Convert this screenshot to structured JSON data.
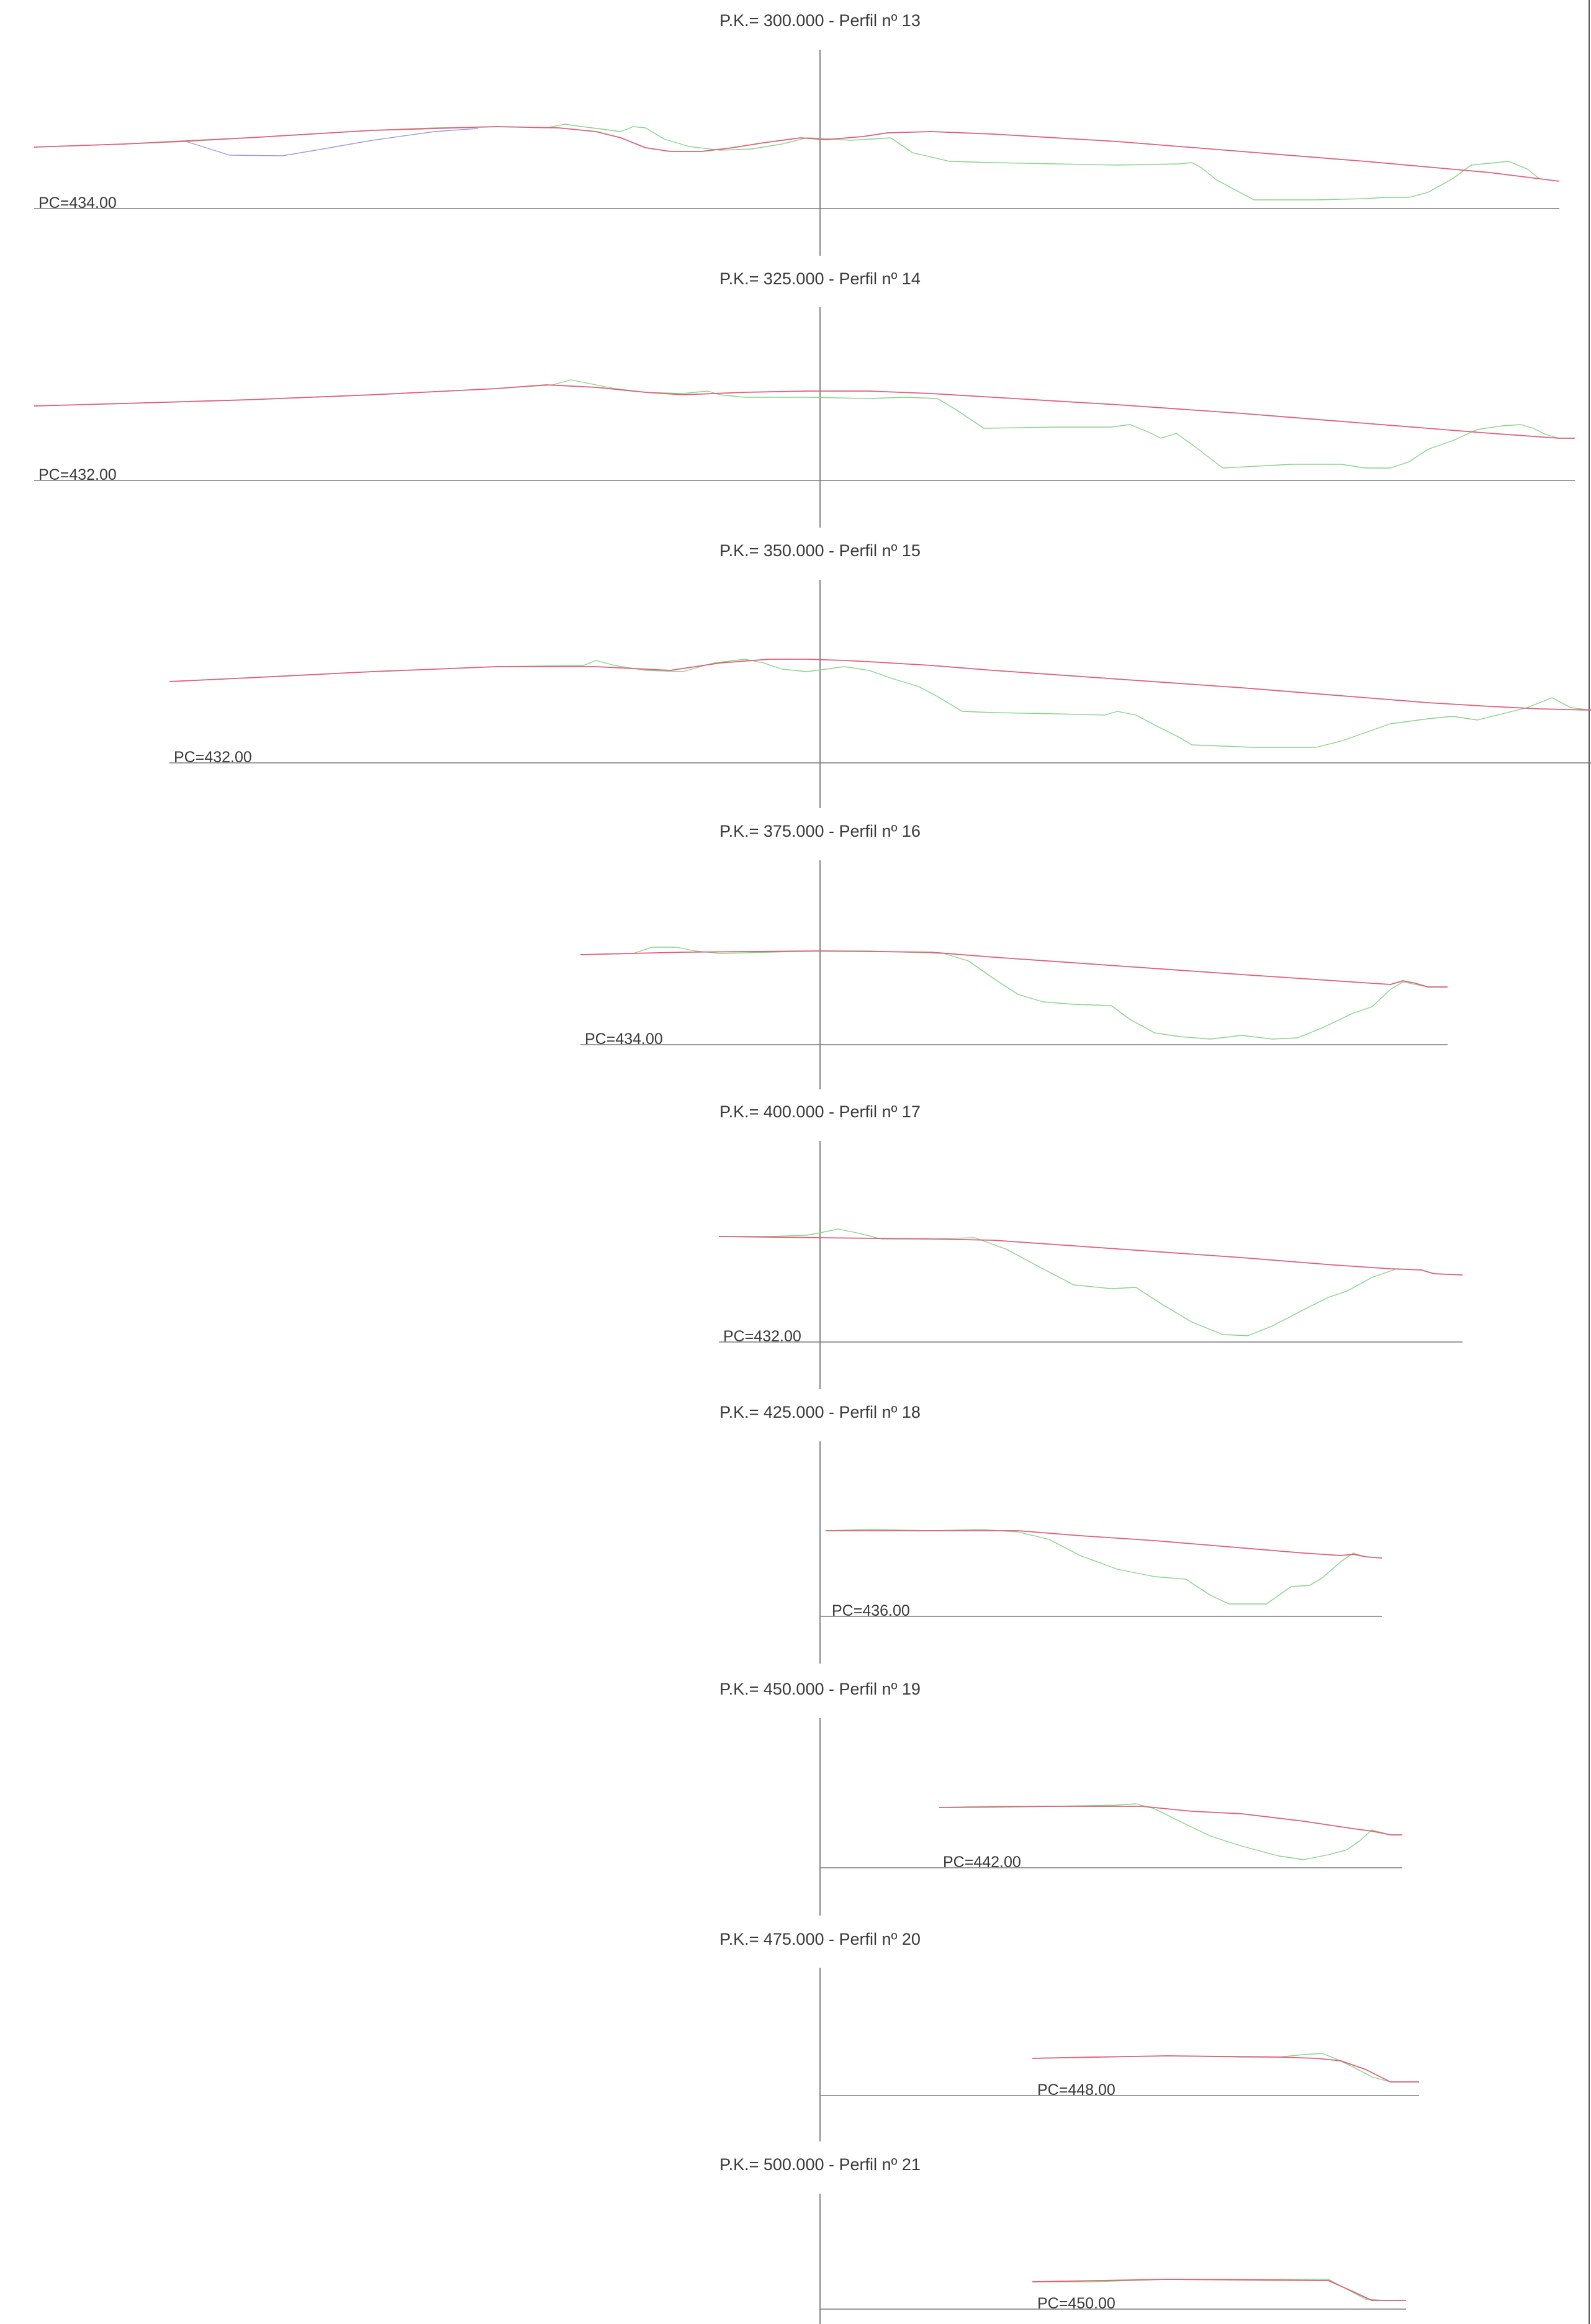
{
  "colors": {
    "terrain": "#86d486",
    "projected": "#e0607a",
    "alternative": "#9b9bdf",
    "axis": "#6b6b6b"
  },
  "sheet": {
    "profiles": [
      {
        "id": "p13",
        "title": "P.K.=  300.000 - Perfil nº 13",
        "pc_label": "PC=434.00"
      },
      {
        "id": "p14",
        "title": "P.K.=  325.000 - Perfil nº 14",
        "pc_label": "PC=432.00"
      },
      {
        "id": "p15",
        "title": "P.K.=  350.000 - Perfil nº 15",
        "pc_label": "PC=432.00"
      },
      {
        "id": "p16",
        "title": "P.K.=  375.000 - Perfil nº 16",
        "pc_label": "PC=434.00"
      },
      {
        "id": "p17",
        "title": "P.K.=  400.000 - Perfil nº 17",
        "pc_label": "PC=432.00"
      },
      {
        "id": "p18",
        "title": "P.K.=  425.000 - Perfil nº 18",
        "pc_label": "PC=436.00"
      },
      {
        "id": "p19",
        "title": "P.K.=  450.000 - Perfil nº 19",
        "pc_label": "PC=442.00"
      },
      {
        "id": "p20",
        "title": "P.K.=  475.000 - Perfil nº 20",
        "pc_label": "PC=448.00"
      },
      {
        "id": "p21",
        "title": "P.K.=  500.000 - Perfil nº 21",
        "pc_label": "PC=450.00"
      }
    ]
  }
}
